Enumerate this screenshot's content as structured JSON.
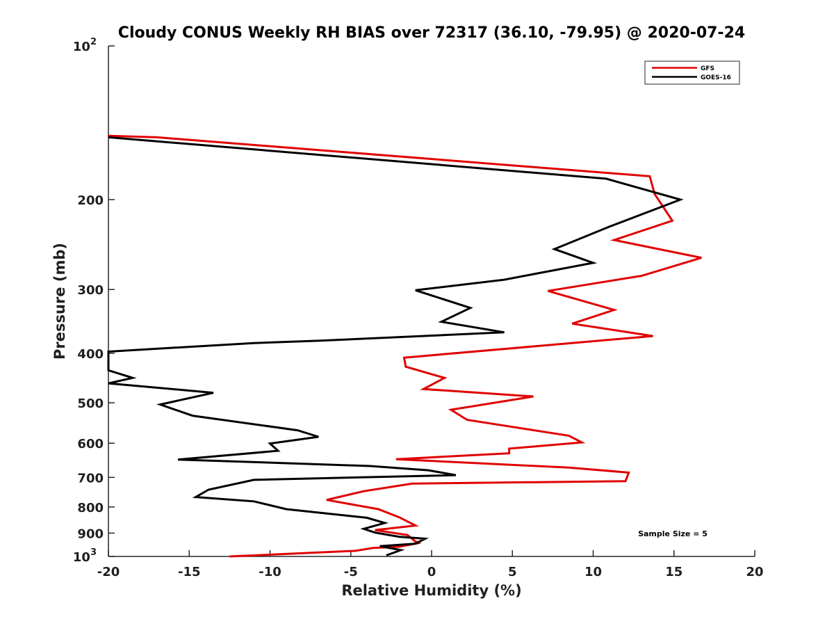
{
  "chart_data": {
    "type": "line",
    "title": "Cloudy CONUS Weekly RH BIAS over 72317 (36.10, -79.95) @ 2020-07-24",
    "xlabel": "Relative Humidity (%)",
    "ylabel": "Pressure (mb)",
    "xlim": [
      -20,
      20
    ],
    "ylim": [
      100,
      1000
    ],
    "y_scale": "log",
    "y_reversed": true,
    "x_ticks": [
      "-20",
      "-15",
      "-10",
      "-5",
      "0",
      "5",
      "10",
      "15",
      "20"
    ],
    "y_ticks": [
      {
        "value": 100,
        "base": "10",
        "exp": "2"
      },
      {
        "value": 200,
        "label": "200"
      },
      {
        "value": 300,
        "label": "300"
      },
      {
        "value": 400,
        "label": "400"
      },
      {
        "value": 500,
        "label": "500"
      },
      {
        "value": 600,
        "label": "600"
      },
      {
        "value": 700,
        "label": "700"
      },
      {
        "value": 800,
        "label": "800"
      },
      {
        "value": 900,
        "label": "900"
      },
      {
        "value": 1000,
        "base": "10",
        "exp": "3"
      }
    ],
    "grid": false,
    "legend_position": "top-right",
    "annotation": "Sample Size = 5",
    "series": [
      {
        "name": "GFS",
        "color": "#e00000",
        "points": [
          [
            -20,
            150
          ],
          [
            -17,
            151
          ],
          [
            13.5,
            180
          ],
          [
            13.8,
            195
          ],
          [
            14.9,
            220
          ],
          [
            11.3,
            240
          ],
          [
            16.7,
            260
          ],
          [
            13.0,
            282
          ],
          [
            7.2,
            302
          ],
          [
            11.3,
            329
          ],
          [
            8.7,
            350
          ],
          [
            13.7,
            370
          ],
          [
            -1.7,
            408
          ],
          [
            -1.6,
            425
          ],
          [
            0.8,
            447
          ],
          [
            -0.5,
            470
          ],
          [
            6.3,
            486
          ],
          [
            1.2,
            516
          ],
          [
            2.2,
            540
          ],
          [
            8.5,
            580
          ],
          [
            9.3,
            598
          ],
          [
            4.8,
            615
          ],
          [
            4.8,
            628
          ],
          [
            -2.2,
            645
          ],
          [
            8.5,
            670
          ],
          [
            12.2,
            685
          ],
          [
            12.0,
            712
          ],
          [
            -1.2,
            720
          ],
          [
            -4.2,
            745
          ],
          [
            -6.5,
            775
          ],
          [
            -3.3,
            808
          ],
          [
            -2.0,
            838
          ],
          [
            -1.0,
            870
          ],
          [
            -3.5,
            888
          ],
          [
            -1.5,
            908
          ],
          [
            -1.0,
            935
          ],
          [
            -0.7,
            940
          ],
          [
            -2.0,
            957
          ],
          [
            -3.6,
            962
          ],
          [
            -4.7,
            975
          ],
          [
            -12.5,
            1000
          ]
        ]
      },
      {
        "name": "GOES-16",
        "color": "#000000",
        "points": [
          [
            -20,
            151
          ],
          [
            10.8,
            182
          ],
          [
            15.4,
            200
          ],
          [
            11.0,
            226
          ],
          [
            7.6,
            250
          ],
          [
            10.0,
            266
          ],
          [
            4.5,
            287
          ],
          [
            -1.0,
            301
          ],
          [
            2.4,
            326
          ],
          [
            0.6,
            347
          ],
          [
            4.5,
            364
          ],
          [
            -7.0,
            378
          ],
          [
            -11.0,
            382
          ],
          [
            -20,
            397
          ],
          [
            -20,
            432
          ],
          [
            -18.5,
            447
          ],
          [
            -20,
            458
          ],
          [
            -13.5,
            478
          ],
          [
            -16.8,
            504
          ],
          [
            -14.8,
            530
          ],
          [
            -8.3,
            566
          ],
          [
            -7.0,
            583
          ],
          [
            -10.0,
            601
          ],
          [
            -9.5,
            621
          ],
          [
            -15.7,
            646
          ],
          [
            -3.8,
            665
          ],
          [
            -0.2,
            678
          ],
          [
            1.5,
            693
          ],
          [
            -11.0,
            708
          ],
          [
            -13.8,
            740
          ],
          [
            -14.6,
            765
          ],
          [
            -11.0,
            780
          ],
          [
            -9.0,
            808
          ],
          [
            -4.0,
            840
          ],
          [
            -2.9,
            860
          ],
          [
            -4.2,
            883
          ],
          [
            -3.5,
            898
          ],
          [
            -2.0,
            915
          ],
          [
            -0.4,
            923
          ],
          [
            -1.0,
            944
          ],
          [
            -3.2,
            955
          ],
          [
            -1.9,
            972
          ],
          [
            -2.8,
            995
          ]
        ]
      }
    ]
  }
}
